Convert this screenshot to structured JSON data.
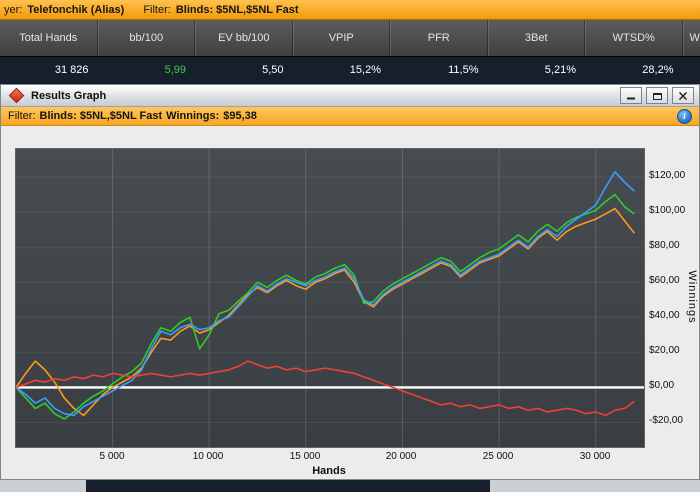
{
  "topbar": {
    "player_label": "yer:",
    "player_name": "Telefonchik (Alias)",
    "filter_label": "Filter:",
    "filter_value": "Blinds: $5NL,$5NL Fast"
  },
  "stats": {
    "columns": [
      {
        "label": "Total Hands",
        "value": "31 826",
        "value_color": "#ffffff"
      },
      {
        "label": "bb/100",
        "value": "5,99",
        "value_color": "#44cc44"
      },
      {
        "label": "EV bb/100",
        "value": "5,50",
        "value_color": "#ffffff"
      },
      {
        "label": "VPIP",
        "value": "15,2%",
        "value_color": "#ffffff"
      },
      {
        "label": "PFR",
        "value": "11,5%",
        "value_color": "#ffffff"
      },
      {
        "label": "3Bet",
        "value": "5,21%",
        "value_color": "#ffffff"
      },
      {
        "label": "WTSD%",
        "value": "28,2%",
        "value_color": "#ffffff"
      },
      {
        "label": "W",
        "value": "",
        "value_color": "#ffffff"
      }
    ]
  },
  "window": {
    "title": "Results Graph",
    "filter": {
      "label": "Filter:",
      "blinds": "Blinds: $5NL,$5NL Fast",
      "winnings_label": "Winnings:",
      "winnings_value": "$95,38"
    },
    "info_icon_glyph": "i"
  },
  "chart_data": {
    "type": "line",
    "title": "",
    "xlabel": "Hands",
    "ylabel": "Winnings",
    "xlim": [
      0,
      32500
    ],
    "ylim": [
      -34,
      136
    ],
    "x_start": 0,
    "x_step": 500,
    "grid": true,
    "vgrid_color": "rgba(255,255,255,0.16)",
    "hgrid_color": "rgba(255,255,255,0.07)",
    "zero_line_value": 0,
    "zero_line_color": "#ffffff",
    "x_ticks": [
      {
        "value": 5000,
        "label": "5 000"
      },
      {
        "value": 10000,
        "label": "10 000"
      },
      {
        "value": 15000,
        "label": "15 000"
      },
      {
        "value": 20000,
        "label": "20 000"
      },
      {
        "value": 25000,
        "label": "25 000"
      },
      {
        "value": 30000,
        "label": "30 000"
      }
    ],
    "y_ticks": [
      {
        "value": 120,
        "label": "$120,00"
      },
      {
        "value": 100,
        "label": "$100,00"
      },
      {
        "value": 80,
        "label": "$80,00"
      },
      {
        "value": 60,
        "label": "$60,00"
      },
      {
        "value": 40,
        "label": "$40,00"
      },
      {
        "value": 20,
        "label": "$20,00"
      },
      {
        "value": 0,
        "label": "$0,00"
      },
      {
        "value": -20,
        "label": "-$20,00"
      }
    ],
    "series": [
      {
        "name": "orange",
        "color": "#ff9820",
        "values": [
          0,
          8,
          15,
          10,
          3,
          -6,
          -12,
          -16,
          -10,
          -4,
          0,
          3,
          6,
          11,
          20,
          28,
          27,
          32,
          35,
          31,
          33,
          37,
          41,
          47,
          53,
          57,
          54,
          58,
          61,
          58,
          56,
          60,
          62,
          65,
          67,
          60,
          49,
          46,
          52,
          56,
          59,
          62,
          65,
          68,
          71,
          69,
          63,
          67,
          71,
          73,
          75,
          79,
          83,
          79,
          85,
          89,
          84,
          89,
          92,
          94,
          96,
          99,
          102,
          95,
          88
        ]
      },
      {
        "name": "green",
        "color": "#2ecc2e",
        "values": [
          0,
          -6,
          -12,
          -9,
          -15,
          -18,
          -14,
          -9,
          -5,
          -2,
          2,
          6,
          9,
          14,
          25,
          34,
          32,
          37,
          40,
          22,
          30,
          42,
          44,
          49,
          54,
          60,
          57,
          61,
          64,
          61,
          59,
          63,
          65,
          68,
          70,
          64,
          48,
          49,
          55,
          59,
          62,
          65,
          68,
          71,
          74,
          72,
          66,
          70,
          74,
          77,
          79,
          83,
          87,
          83,
          89,
          93,
          89,
          94,
          97,
          99,
          101,
          106,
          110,
          103,
          99
        ]
      },
      {
        "name": "blue",
        "color": "#3b9cff",
        "values": [
          0,
          -4,
          -9,
          -6,
          -12,
          -15,
          -16,
          -11,
          -8,
          -5,
          -2,
          1,
          4,
          10,
          22,
          32,
          30,
          34,
          36,
          33,
          34,
          38,
          40,
          46,
          52,
          58,
          55,
          59,
          62,
          60,
          58,
          61,
          63,
          66,
          68,
          62,
          50,
          47,
          53,
          57,
          60,
          63,
          66,
          69,
          72,
          70,
          64,
          68,
          72,
          74,
          76,
          80,
          84,
          80,
          86,
          90,
          86,
          92,
          96,
          100,
          104,
          114,
          123,
          117,
          112
        ]
      },
      {
        "name": "red",
        "color": "#ef4135",
        "values": [
          0,
          2,
          4,
          3,
          5,
          4,
          6,
          5,
          7,
          6,
          8,
          7,
          6,
          7,
          8,
          7,
          6,
          7,
          8,
          7,
          8,
          9,
          10,
          12,
          15,
          13,
          11,
          12,
          10,
          11,
          9,
          10,
          11,
          10,
          9,
          8,
          6,
          4,
          2,
          0,
          -2,
          -4,
          -6,
          -8,
          -10,
          -9,
          -11,
          -10,
          -12,
          -11,
          -10,
          -12,
          -11,
          -13,
          -12,
          -14,
          -13,
          -12,
          -13,
          -15,
          -14,
          -16,
          -13,
          -12,
          -8
        ]
      }
    ]
  }
}
